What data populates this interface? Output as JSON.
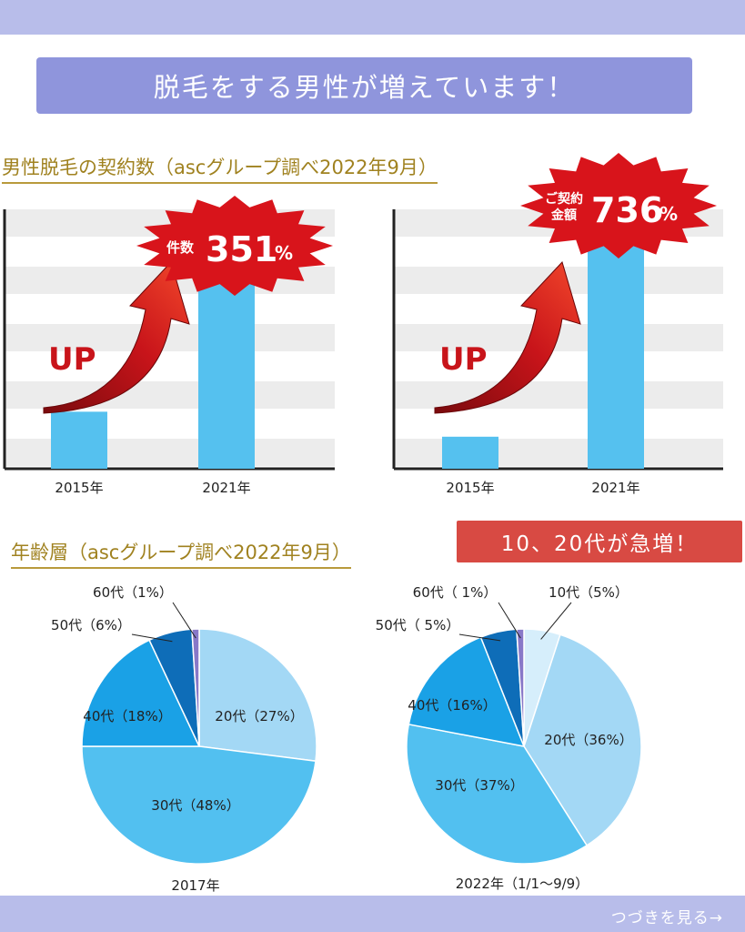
{
  "page": {
    "title": "脱毛をする男性が増えています！",
    "section1_title": "男性脱毛の契約数（ascグループ調べ2022年9月）",
    "section2_title": "年齢層（ascグループ調べ2022年9月）",
    "highlight_badge": "10、20代が急増！",
    "next_link": "つづきを見る→",
    "up_label": "UP"
  },
  "colors": {
    "bar": "#55c1ef",
    "arrow": "#c8141a",
    "burst": "#d8141b",
    "banner": "#8f95dc",
    "bars_bg": "#b8bdea",
    "accent_gold": "#a08220",
    "badge_red": "#d84a43",
    "pie_20s": "#a3d8f5",
    "pie_30s": "#52c0f0",
    "pie_40s": "#1aa1e6",
    "pie_50s": "#0e6db8",
    "pie_60s": "#8878c8",
    "pie_10s": "#d6eefb"
  },
  "chart_data": [
    {
      "type": "bar",
      "categories": [
        "2015年",
        "2021年"
      ],
      "values": [
        100,
        351
      ],
      "ylim": [
        0,
        455
      ],
      "grid": "horizontal bands",
      "annotation": {
        "line1": "件数",
        "value": "351",
        "unit": "%"
      }
    },
    {
      "type": "bar",
      "categories": [
        "2015年",
        "2021年"
      ],
      "values": [
        100,
        736
      ],
      "ylim": [
        0,
        810
      ],
      "grid": "horizontal bands",
      "annotation": {
        "line1": "ご契約",
        "line2": "金額",
        "value": "736",
        "unit": "%"
      }
    },
    {
      "type": "pie",
      "caption": "2017年",
      "slices": [
        {
          "label": "20代（27%）",
          "value": 27
        },
        {
          "label": "30代（48%）",
          "value": 48
        },
        {
          "label": "40代（18%）",
          "value": 18
        },
        {
          "label": "50代（6%）",
          "value": 6
        },
        {
          "label": "60代（1%）",
          "value": 1
        }
      ]
    },
    {
      "type": "pie",
      "caption": "2022年（1/1～9/9）",
      "slices": [
        {
          "label": "10代（5%）",
          "value": 5
        },
        {
          "label": "20代（36%）",
          "value": 36
        },
        {
          "label": "30代（37%）",
          "value": 37
        },
        {
          "label": "40代（16%）",
          "value": 16
        },
        {
          "label": "50代（ 5%）",
          "value": 5
        },
        {
          "label": "60代（ 1%）",
          "value": 1
        }
      ]
    }
  ]
}
